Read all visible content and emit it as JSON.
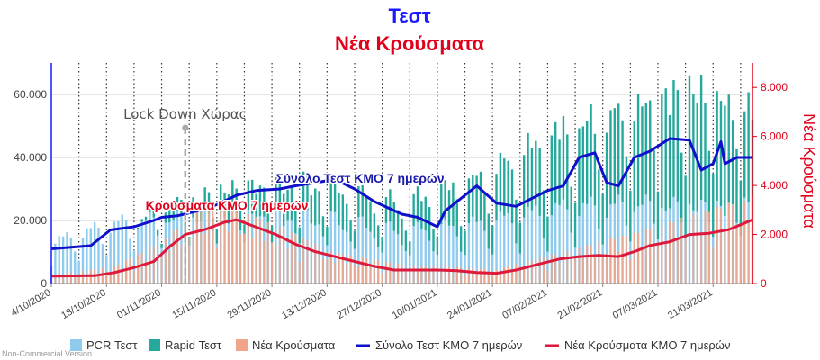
{
  "title": "Τεστ",
  "subtitle": "Νέα Κρούσματα",
  "credit": "Non-Commercial Version",
  "colors": {
    "pcr": "#8ecbee",
    "rapid": "#25a99c",
    "new_cases": "#f0a58a",
    "tests_avg": "#1010cc",
    "cases_avg": "#dd1a3c",
    "left_axis": "#1a1aff",
    "right_axis": "#e0001b"
  },
  "chart_data": {
    "type": "bar",
    "x_start": "2020-10-04",
    "x_end": "2021-03-31",
    "x_tick_labels": [
      "4/10/2020",
      "18/10/2020",
      "01/11/2020",
      "15/11/2020",
      "29/11/2020",
      "13/12/2020",
      "27/12/2020",
      "10/01/2021",
      "24/01/2021",
      "07/02/2021",
      "21/02/2021",
      "07/03/2021",
      "21/03/2021"
    ],
    "y_left": {
      "min": 0,
      "max": 70000,
      "ticks": [
        0,
        20000,
        40000,
        60000
      ],
      "tick_labels": [
        "0",
        "20.000",
        "40.000",
        "60.000"
      ]
    },
    "y_right": {
      "label": "Νέα Κρούσματα",
      "min": 0,
      "max": 9000,
      "ticks": [
        0,
        2000,
        4000,
        6000,
        8000
      ],
      "tick_labels": [
        "0",
        "2.000",
        "4.000",
        "6.000",
        "8.000"
      ]
    },
    "weekly_gridlines": true,
    "legend_position": "bottom",
    "annotations": {
      "lockdown": {
        "label": "Lock Down Χώρας",
        "date": "2020-11-07"
      },
      "tests_avg_label": "Σύνολο Τεστ ΚΜΟ 7 ημερών",
      "cases_avg_label": "Κρούσματα ΚΜΟ 7 ημερών"
    },
    "series": [
      {
        "name": "PCR Τεστ",
        "kind": "bar",
        "axis": "left",
        "keyframes": [
          [
            "2020-10-04",
            12000
          ],
          [
            "2020-10-20",
            18000
          ],
          [
            "2020-11-05",
            20000
          ],
          [
            "2020-11-20",
            21000
          ],
          [
            "2020-12-10",
            20000
          ],
          [
            "2021-01-01",
            15000
          ],
          [
            "2021-01-20",
            17000
          ],
          [
            "2021-02-10",
            22000
          ],
          [
            "2021-03-01",
            24000
          ],
          [
            "2021-03-31",
            24000
          ]
        ]
      },
      {
        "name": "Rapid Τεστ",
        "kind": "bar",
        "axis": "left",
        "keyframes": [
          [
            "2020-10-04",
            0
          ],
          [
            "2020-10-25",
            0
          ],
          [
            "2020-11-05",
            4000
          ],
          [
            "2020-11-20",
            9000
          ],
          [
            "2020-12-10",
            10000
          ],
          [
            "2021-01-01",
            8000
          ],
          [
            "2021-01-20",
            13000
          ],
          [
            "2021-02-10",
            22000
          ],
          [
            "2021-03-01",
            28000
          ],
          [
            "2021-03-15",
            34000
          ],
          [
            "2021-03-31",
            28000
          ]
        ]
      },
      {
        "name": "Νέα Κρούσματα",
        "kind": "bar",
        "axis": "right",
        "keyframes": [
          [
            "2020-10-04",
            300
          ],
          [
            "2020-10-20",
            600
          ],
          [
            "2020-11-01",
            1500
          ],
          [
            "2020-11-10",
            2600
          ],
          [
            "2020-11-18",
            2800
          ],
          [
            "2020-12-01",
            2000
          ],
          [
            "2020-12-15",
            1100
          ],
          [
            "2020-12-31",
            700
          ],
          [
            "2021-01-25",
            500
          ],
          [
            "2021-02-10",
            1100
          ],
          [
            "2021-03-01",
            1800
          ],
          [
            "2021-03-15",
            2400
          ],
          [
            "2021-03-31",
            3100
          ]
        ]
      },
      {
        "name": "Σύνολο Τεστ ΚΜΟ 7 ημερών",
        "kind": "line",
        "axis": "left",
        "points": [
          [
            "2020-10-04",
            11000
          ],
          [
            "2020-10-14",
            12000
          ],
          [
            "2020-10-19",
            17000
          ],
          [
            "2020-10-25",
            18000
          ],
          [
            "2020-10-30",
            20000
          ],
          [
            "2020-11-01",
            21000
          ],
          [
            "2020-11-05",
            21500
          ],
          [
            "2020-11-10",
            23000
          ],
          [
            "2020-11-15",
            25000
          ],
          [
            "2020-11-20",
            28000
          ],
          [
            "2020-11-25",
            29500
          ],
          [
            "2020-12-01",
            30000
          ],
          [
            "2020-12-05",
            31000
          ],
          [
            "2020-12-10",
            32000
          ],
          [
            "2020-12-15",
            33000
          ],
          [
            "2020-12-20",
            30000
          ],
          [
            "2020-12-25",
            26000
          ],
          [
            "2021-01-01",
            22000
          ],
          [
            "2021-01-05",
            21000
          ],
          [
            "2021-01-10",
            18000
          ],
          [
            "2021-01-12",
            23000
          ],
          [
            "2021-01-16",
            27000
          ],
          [
            "2021-01-20",
            31000
          ],
          [
            "2021-01-25",
            25500
          ],
          [
            "2021-01-30",
            24500
          ],
          [
            "2021-02-03",
            27000
          ],
          [
            "2021-02-07",
            29500
          ],
          [
            "2021-02-11",
            31000
          ],
          [
            "2021-02-15",
            40000
          ],
          [
            "2021-02-19",
            41500
          ],
          [
            "2021-02-22",
            32000
          ],
          [
            "2021-02-25",
            31000
          ],
          [
            "2021-03-01",
            40000
          ],
          [
            "2021-03-05",
            42000
          ],
          [
            "2021-03-10",
            46000
          ],
          [
            "2021-03-15",
            45500
          ],
          [
            "2021-03-18",
            36000
          ],
          [
            "2021-03-21",
            38000
          ],
          [
            "2021-03-23",
            45000
          ],
          [
            "2021-03-24",
            38000
          ],
          [
            "2021-03-27",
            40000
          ],
          [
            "2021-03-31",
            40000
          ]
        ]
      },
      {
        "name": "Νέα Κρούσματα ΚΜΟ 7 ημερών",
        "kind": "line",
        "axis": "right",
        "points": [
          [
            "2020-10-04",
            300
          ],
          [
            "2020-10-15",
            320
          ],
          [
            "2020-10-20",
            450
          ],
          [
            "2020-10-25",
            650
          ],
          [
            "2020-10-30",
            900
          ],
          [
            "2020-11-03",
            1500
          ],
          [
            "2020-11-07",
            2000
          ],
          [
            "2020-11-12",
            2200
          ],
          [
            "2020-11-17",
            2500
          ],
          [
            "2020-11-20",
            2600
          ],
          [
            "2020-11-25",
            2300
          ],
          [
            "2020-11-30",
            2000
          ],
          [
            "2020-12-05",
            1600
          ],
          [
            "2020-12-10",
            1300
          ],
          [
            "2020-12-15",
            1100
          ],
          [
            "2020-12-20",
            900
          ],
          [
            "2020-12-25",
            700
          ],
          [
            "2020-12-30",
            550
          ],
          [
            "2021-01-05",
            550
          ],
          [
            "2021-01-10",
            550
          ],
          [
            "2021-01-15",
            520
          ],
          [
            "2021-01-20",
            450
          ],
          [
            "2021-01-25",
            420
          ],
          [
            "2021-01-30",
            550
          ],
          [
            "2021-02-05",
            800
          ],
          [
            "2021-02-10",
            1000
          ],
          [
            "2021-02-15",
            1100
          ],
          [
            "2021-02-20",
            1150
          ],
          [
            "2021-02-25",
            1100
          ],
          [
            "2021-03-01",
            1300
          ],
          [
            "2021-03-05",
            1550
          ],
          [
            "2021-03-10",
            1700
          ],
          [
            "2021-03-15",
            2000
          ],
          [
            "2021-03-20",
            2050
          ],
          [
            "2021-03-25",
            2200
          ],
          [
            "2021-03-28",
            2400
          ],
          [
            "2021-03-31",
            2600
          ]
        ]
      }
    ]
  }
}
